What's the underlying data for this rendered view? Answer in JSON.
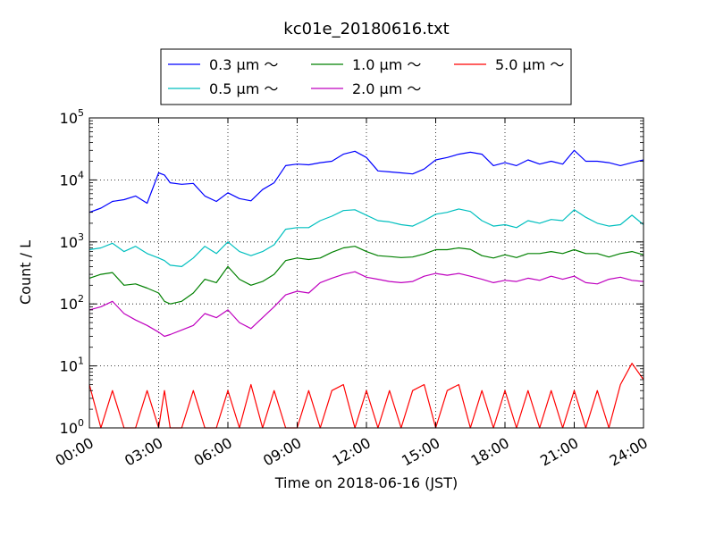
{
  "chart_data": {
    "type": "line",
    "title": "kc01e_20180616.txt",
    "xlabel": "Time on 2018-06-16 (JST)",
    "ylabel": "Count / L",
    "yscale": "log",
    "ylim": [
      1,
      100000
    ],
    "xlim_hours": [
      0,
      24
    ],
    "grid": true,
    "legend_position": "top-center-outside",
    "x_ticks": [
      "00:00",
      "03:00",
      "06:00",
      "09:00",
      "12:00",
      "15:00",
      "18:00",
      "21:00",
      "24:00"
    ],
    "y_ticks": [
      {
        "value": 1,
        "base": "10",
        "exp": "0"
      },
      {
        "value": 10,
        "base": "10",
        "exp": "1"
      },
      {
        "value": 100,
        "base": "10",
        "exp": "2"
      },
      {
        "value": 1000,
        "base": "10",
        "exp": "3"
      },
      {
        "value": 10000,
        "base": "10",
        "exp": "4"
      },
      {
        "value": 100000,
        "base": "10",
        "exp": "5"
      }
    ],
    "x_hours": [
      0,
      0.5,
      1,
      1.5,
      2,
      2.5,
      3,
      3.25,
      3.5,
      4,
      4.5,
      5,
      5.5,
      6,
      6.5,
      7,
      7.5,
      8,
      8.5,
      9,
      9.5,
      10,
      10.5,
      11,
      11.5,
      12,
      12.5,
      13,
      13.5,
      14,
      14.5,
      15,
      15.5,
      16,
      16.5,
      17,
      17.5,
      18,
      18.5,
      19,
      19.5,
      20,
      20.5,
      21,
      21.5,
      22,
      22.5,
      23,
      23.5,
      24
    ],
    "series": [
      {
        "name": "0.3 μm ～",
        "color": "#0000ff",
        "values": [
          3000,
          3500,
          4500,
          4800,
          5500,
          4200,
          13000,
          12000,
          9000,
          8500,
          8800,
          5500,
          4500,
          6200,
          5000,
          4600,
          7000,
          9000,
          17000,
          18000,
          17500,
          19000,
          20000,
          26000,
          29000,
          23000,
          14000,
          13500,
          13000,
          12500,
          15000,
          21000,
          23000,
          26000,
          28000,
          26000,
          17000,
          19000,
          17000,
          21000,
          18000,
          20000,
          18000,
          30000,
          20000,
          20000,
          19000,
          17000,
          19000,
          21000
        ]
      },
      {
        "name": "0.5 μm ～",
        "color": "#00bfbf",
        "values": [
          750,
          800,
          950,
          700,
          850,
          650,
          550,
          500,
          420,
          400,
          550,
          850,
          650,
          1000,
          700,
          600,
          700,
          900,
          1600,
          1700,
          1700,
          2200,
          2600,
          3200,
          3300,
          2700,
          2200,
          2100,
          1900,
          1800,
          2200,
          2800,
          3000,
          3400,
          3100,
          2200,
          1800,
          1900,
          1700,
          2200,
          2000,
          2300,
          2200,
          3300,
          2500,
          2000,
          1800,
          1900,
          2700,
          1900
        ]
      },
      {
        "name": "1.0 μm ～",
        "color": "#008000",
        "values": [
          260,
          300,
          320,
          200,
          210,
          180,
          150,
          110,
          100,
          110,
          150,
          250,
          220,
          400,
          250,
          200,
          230,
          300,
          500,
          550,
          520,
          550,
          680,
          800,
          850,
          700,
          600,
          580,
          560,
          570,
          640,
          750,
          750,
          800,
          760,
          600,
          550,
          620,
          560,
          650,
          650,
          700,
          650,
          750,
          650,
          650,
          570,
          650,
          700,
          620
        ]
      },
      {
        "name": "2.0 μm ～",
        "color": "#bf00bf",
        "values": [
          80,
          90,
          110,
          70,
          55,
          45,
          35,
          30,
          32,
          38,
          45,
          70,
          60,
          80,
          50,
          40,
          60,
          90,
          140,
          160,
          150,
          220,
          260,
          300,
          330,
          270,
          250,
          230,
          220,
          230,
          280,
          310,
          290,
          310,
          280,
          250,
          220,
          240,
          230,
          260,
          240,
          280,
          250,
          280,
          220,
          210,
          250,
          270,
          240,
          230
        ]
      },
      {
        "name": "5.0 μm ～",
        "color": "#ff0000",
        "values": [
          5,
          1,
          4,
          1,
          1,
          4,
          1,
          4,
          1,
          1,
          4,
          1,
          1,
          4,
          1,
          5,
          1,
          4,
          1,
          1,
          4,
          1,
          4,
          5,
          1,
          4,
          1,
          4,
          1,
          4,
          5,
          1,
          4,
          5,
          1,
          4,
          1,
          4,
          1,
          4,
          1,
          4,
          1,
          4,
          1,
          4,
          1,
          5,
          11,
          6
        ]
      }
    ]
  }
}
